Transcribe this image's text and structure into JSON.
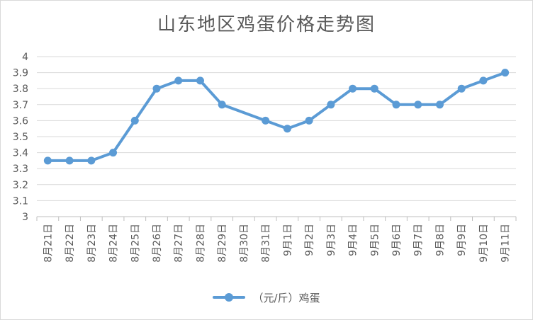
{
  "chart_data": {
    "type": "line",
    "title": "山东地区鸡蛋价格走势图",
    "xlabel": "",
    "ylabel": "",
    "ylim": [
      3,
      4
    ],
    "yticks": [
      "3",
      "3.1",
      "3.2",
      "3.3",
      "3.4",
      "3.5",
      "3.6",
      "3.7",
      "3.8",
      "3.9",
      "4"
    ],
    "categories": [
      "8月21日",
      "8月22日",
      "8月23日",
      "8月24日",
      "8月25日",
      "8月26日",
      "8月27日",
      "8月28日",
      "8月29日",
      "8月30日",
      "8月31日",
      "9月1日",
      "9月2日",
      "9月3日",
      "9月4日",
      "9月5日",
      "9月6日",
      "9月7日",
      "9月8日",
      "9月9日",
      "9月10日",
      "9月11日"
    ],
    "series": [
      {
        "name": "（元/斤）鸡蛋",
        "values": [
          3.35,
          3.35,
          3.35,
          3.4,
          3.6,
          3.8,
          3.85,
          3.85,
          3.7,
          null,
          3.6,
          3.55,
          3.6,
          3.7,
          3.8,
          3.8,
          3.7,
          3.7,
          3.7,
          3.8,
          3.85,
          3.9
        ],
        "color": "#5b9bd5"
      }
    ],
    "grid": true,
    "legend_position": "bottom"
  }
}
